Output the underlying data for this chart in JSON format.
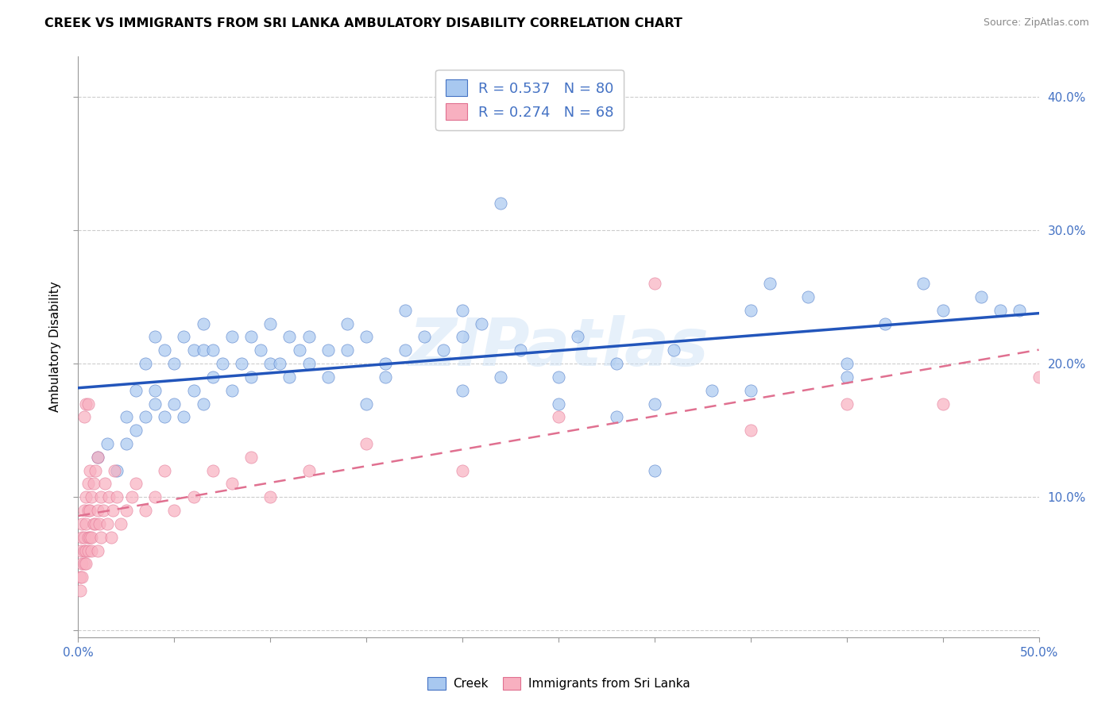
{
  "title": "CREEK VS IMMIGRANTS FROM SRI LANKA AMBULATORY DISABILITY CORRELATION CHART",
  "source": "Source: ZipAtlas.com",
  "ylabel": "Ambulatory Disability",
  "xlim": [
    0.0,
    0.5
  ],
  "ylim": [
    -0.005,
    0.43
  ],
  "creek_color": "#a8c8f0",
  "creek_edge_color": "#4472c4",
  "srilanka_color": "#f8b0c0",
  "srilanka_edge_color": "#e07090",
  "creek_line_color": "#2255bb",
  "srilanka_line_color": "#e07090",
  "legend_text_color": "#4472c4",
  "tick_color": "#4472c4",
  "R_creek": 0.537,
  "N_creek": 80,
  "R_srilanka": 0.274,
  "N_srilanka": 68,
  "watermark": "ZIPatlas",
  "grid_color": "#cccccc",
  "right_yticks": [
    0.1,
    0.2,
    0.3,
    0.4
  ],
  "right_ytick_labels": [
    "10.0%",
    "20.0%",
    "30.0%",
    "40.0%"
  ],
  "creek_x": [
    0.01,
    0.015,
    0.02,
    0.025,
    0.025,
    0.03,
    0.03,
    0.035,
    0.035,
    0.04,
    0.04,
    0.04,
    0.045,
    0.045,
    0.05,
    0.05,
    0.055,
    0.055,
    0.06,
    0.06,
    0.065,
    0.065,
    0.065,
    0.07,
    0.07,
    0.075,
    0.08,
    0.08,
    0.085,
    0.09,
    0.09,
    0.095,
    0.1,
    0.1,
    0.105,
    0.11,
    0.11,
    0.115,
    0.12,
    0.12,
    0.13,
    0.13,
    0.14,
    0.14,
    0.15,
    0.16,
    0.17,
    0.17,
    0.18,
    0.19,
    0.2,
    0.2,
    0.21,
    0.22,
    0.23,
    0.25,
    0.26,
    0.28,
    0.28,
    0.3,
    0.31,
    0.33,
    0.35,
    0.36,
    0.38,
    0.4,
    0.42,
    0.44,
    0.45,
    0.47,
    0.48,
    0.49,
    0.15,
    0.16,
    0.2,
    0.22,
    0.25,
    0.3,
    0.35,
    0.4
  ],
  "creek_y": [
    0.13,
    0.14,
    0.12,
    0.14,
    0.16,
    0.15,
    0.18,
    0.16,
    0.2,
    0.17,
    0.18,
    0.22,
    0.16,
    0.21,
    0.17,
    0.2,
    0.16,
    0.22,
    0.18,
    0.21,
    0.17,
    0.21,
    0.23,
    0.19,
    0.21,
    0.2,
    0.18,
    0.22,
    0.2,
    0.19,
    0.22,
    0.21,
    0.2,
    0.23,
    0.2,
    0.19,
    0.22,
    0.21,
    0.2,
    0.22,
    0.21,
    0.19,
    0.21,
    0.23,
    0.22,
    0.2,
    0.21,
    0.24,
    0.22,
    0.21,
    0.22,
    0.24,
    0.23,
    0.32,
    0.21,
    0.19,
    0.22,
    0.16,
    0.2,
    0.12,
    0.21,
    0.18,
    0.24,
    0.26,
    0.25,
    0.2,
    0.23,
    0.26,
    0.24,
    0.25,
    0.24,
    0.24,
    0.17,
    0.19,
    0.18,
    0.19,
    0.17,
    0.17,
    0.18,
    0.19
  ],
  "srilanka_x": [
    0.001,
    0.001,
    0.001,
    0.002,
    0.002,
    0.002,
    0.002,
    0.003,
    0.003,
    0.003,
    0.003,
    0.004,
    0.004,
    0.004,
    0.004,
    0.005,
    0.005,
    0.005,
    0.005,
    0.006,
    0.006,
    0.006,
    0.007,
    0.007,
    0.007,
    0.008,
    0.008,
    0.009,
    0.009,
    0.01,
    0.01,
    0.01,
    0.011,
    0.012,
    0.012,
    0.013,
    0.014,
    0.015,
    0.016,
    0.017,
    0.018,
    0.019,
    0.02,
    0.022,
    0.025,
    0.028,
    0.03,
    0.035,
    0.04,
    0.045,
    0.05,
    0.06,
    0.07,
    0.08,
    0.09,
    0.1,
    0.12,
    0.15,
    0.2,
    0.25,
    0.3,
    0.35,
    0.4,
    0.45,
    0.5,
    0.003,
    0.004,
    0.005
  ],
  "srilanka_y": [
    0.04,
    0.06,
    0.03,
    0.05,
    0.07,
    0.04,
    0.08,
    0.05,
    0.07,
    0.09,
    0.06,
    0.06,
    0.08,
    0.05,
    0.1,
    0.06,
    0.07,
    0.09,
    0.11,
    0.07,
    0.09,
    0.12,
    0.07,
    0.1,
    0.06,
    0.08,
    0.11,
    0.08,
    0.12,
    0.06,
    0.09,
    0.13,
    0.08,
    0.07,
    0.1,
    0.09,
    0.11,
    0.08,
    0.1,
    0.07,
    0.09,
    0.12,
    0.1,
    0.08,
    0.09,
    0.1,
    0.11,
    0.09,
    0.1,
    0.12,
    0.09,
    0.1,
    0.12,
    0.11,
    0.13,
    0.1,
    0.12,
    0.14,
    0.12,
    0.16,
    0.26,
    0.15,
    0.17,
    0.17,
    0.19,
    0.16,
    0.17,
    0.17
  ]
}
